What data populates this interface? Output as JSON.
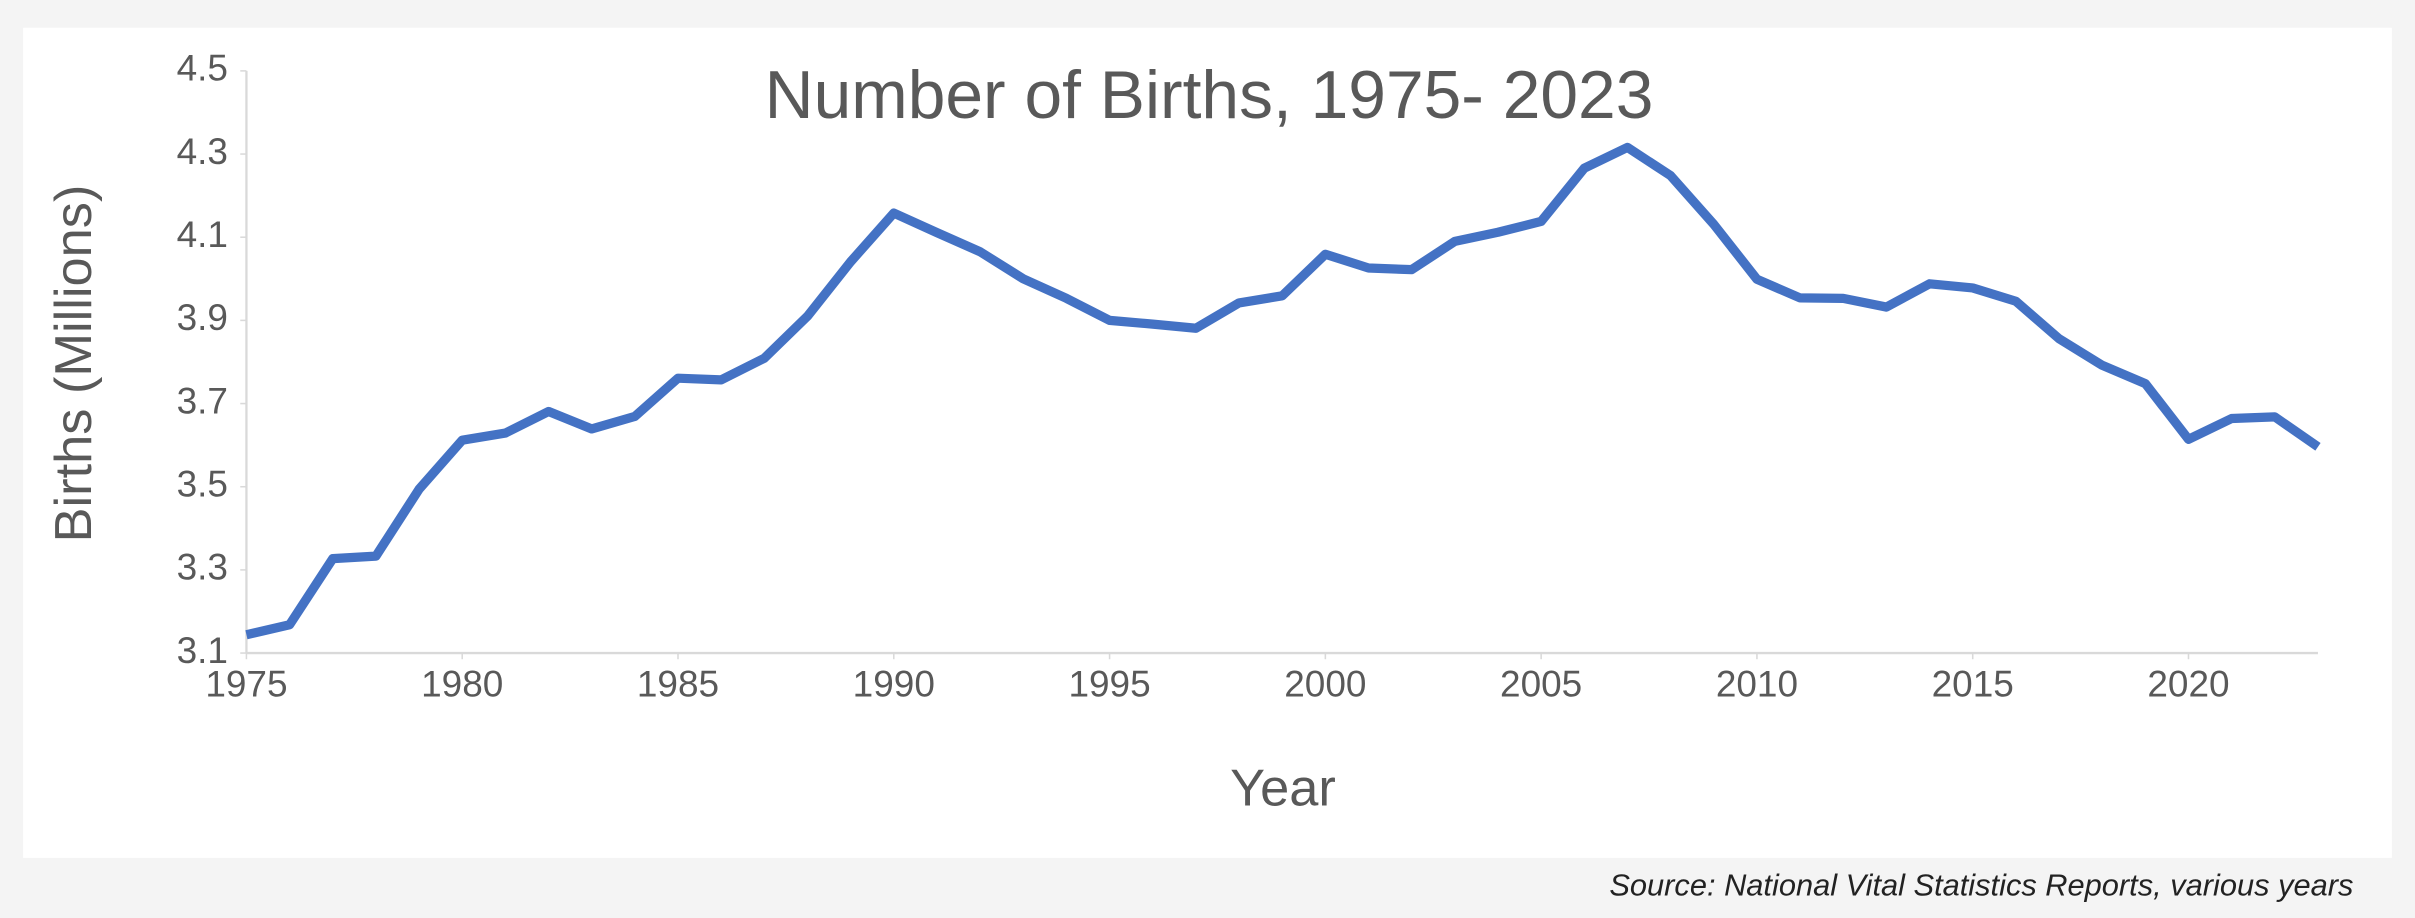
{
  "chart_data": {
    "type": "line",
    "title": "Number of Births, 1975- 2023",
    "x_label": "Year",
    "y_label": "Births (Millions)",
    "source": "Source: National Vital Statistics Reports, various years",
    "x": [
      1975,
      1976,
      1977,
      1978,
      1979,
      1980,
      1981,
      1982,
      1983,
      1984,
      1985,
      1986,
      1987,
      1988,
      1989,
      1990,
      1991,
      1992,
      1993,
      1994,
      1995,
      1996,
      1997,
      1998,
      1999,
      2000,
      2001,
      2002,
      2003,
      2004,
      2005,
      2006,
      2007,
      2008,
      2009,
      2010,
      2011,
      2012,
      2013,
      2014,
      2015,
      2016,
      2017,
      2018,
      2019,
      2020,
      2021,
      2022,
      2023
    ],
    "series": [
      {
        "name": "Births",
        "color": "#4472c4",
        "values": [
          3.144,
          3.168,
          3.327,
          3.333,
          3.494,
          3.612,
          3.629,
          3.681,
          3.639,
          3.669,
          3.761,
          3.757,
          3.809,
          3.91,
          4.041,
          4.158,
          4.111,
          4.065,
          4.0,
          3.953,
          3.9,
          3.891,
          3.881,
          3.942,
          3.959,
          4.059,
          4.026,
          4.022,
          4.09,
          4.112,
          4.138,
          4.266,
          4.316,
          4.248,
          4.131,
          3.999,
          3.954,
          3.953,
          3.932,
          3.988,
          3.978,
          3.946,
          3.856,
          3.792,
          3.748,
          3.614,
          3.664,
          3.668,
          3.596
        ]
      }
    ],
    "xlim": [
      1975,
      2023
    ],
    "xticks": [
      1975,
      1980,
      1985,
      1990,
      1995,
      2000,
      2005,
      2010,
      2015,
      2020
    ],
    "ylim": [
      3.1,
      4.5
    ],
    "yticks": [
      3.1,
      3.3,
      3.5,
      3.7,
      3.9,
      4.1,
      4.3,
      4.5
    ],
    "grid": false
  }
}
